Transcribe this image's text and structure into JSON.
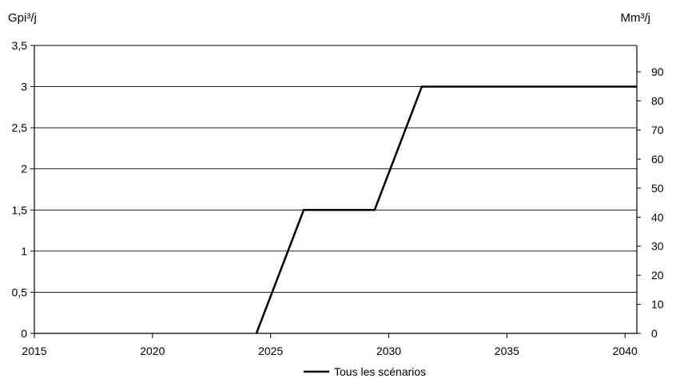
{
  "chart_data": {
    "type": "line",
    "y_left_label": "Gpi³/j",
    "y_right_label": "Mm³/j",
    "x_ticks": [
      "2015",
      "2020",
      "2025",
      "2030",
      "2035",
      "2040"
    ],
    "x_tick_values": [
      2015,
      2020,
      2025,
      2030,
      2035,
      2040
    ],
    "xlim": [
      2015,
      2040.5
    ],
    "y_left_ticks": [
      "0",
      "0,5",
      "1",
      "1,5",
      "2",
      "2,5",
      "3",
      "3,5"
    ],
    "y_left_tick_values": [
      0,
      0.5,
      1,
      1.5,
      2,
      2.5,
      3,
      3.5
    ],
    "ylim_left": [
      0,
      3.5
    ],
    "y_right_ticks": [
      "0",
      "10",
      "20",
      "30",
      "40",
      "50",
      "60",
      "70",
      "80",
      "90"
    ],
    "y_right_tick_values": [
      0,
      10,
      20,
      30,
      40,
      50,
      60,
      70,
      80,
      90
    ],
    "ylim_right": [
      0,
      99.1
    ],
    "grid": "horizontal",
    "legend_position": "bottom",
    "series": [
      {
        "name": "Tous les scénarios",
        "color": "#000000",
        "x": [
          2024.4,
          2026.4,
          2029.4,
          2031.4,
          2040.5
        ],
        "y": [
          0,
          1.5,
          1.5,
          3,
          3
        ]
      }
    ]
  }
}
